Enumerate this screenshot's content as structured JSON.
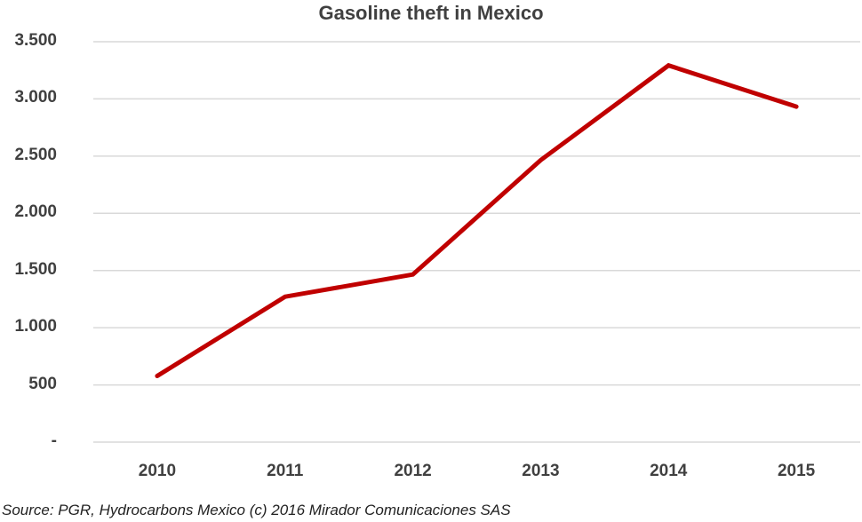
{
  "chart_data": {
    "type": "line",
    "title": "Gasoline theft in Mexico",
    "xlabel": "",
    "ylabel": "",
    "categories": [
      "2010",
      "2011",
      "2012",
      "2013",
      "2014",
      "2015"
    ],
    "series": [
      {
        "name": "Gasoline theft",
        "color": "#c00000",
        "values": [
          578,
          1271,
          1465,
          2465,
          3293,
          2933
        ]
      }
    ],
    "ylim": [
      0,
      3500
    ],
    "yticks": [
      0,
      500,
      1000,
      1500,
      2000,
      2500,
      3000,
      3500
    ],
    "ytick_labels": [
      "-",
      "500",
      "1.000",
      "1.500",
      "2.000",
      "2.500",
      "3.000",
      "3.500"
    ],
    "grid": true,
    "legend": "none"
  },
  "footer": {
    "source": "Source: PGR, Hydrocarbons Mexico (c) 2016 Mirador Comunicaciones SAS"
  }
}
